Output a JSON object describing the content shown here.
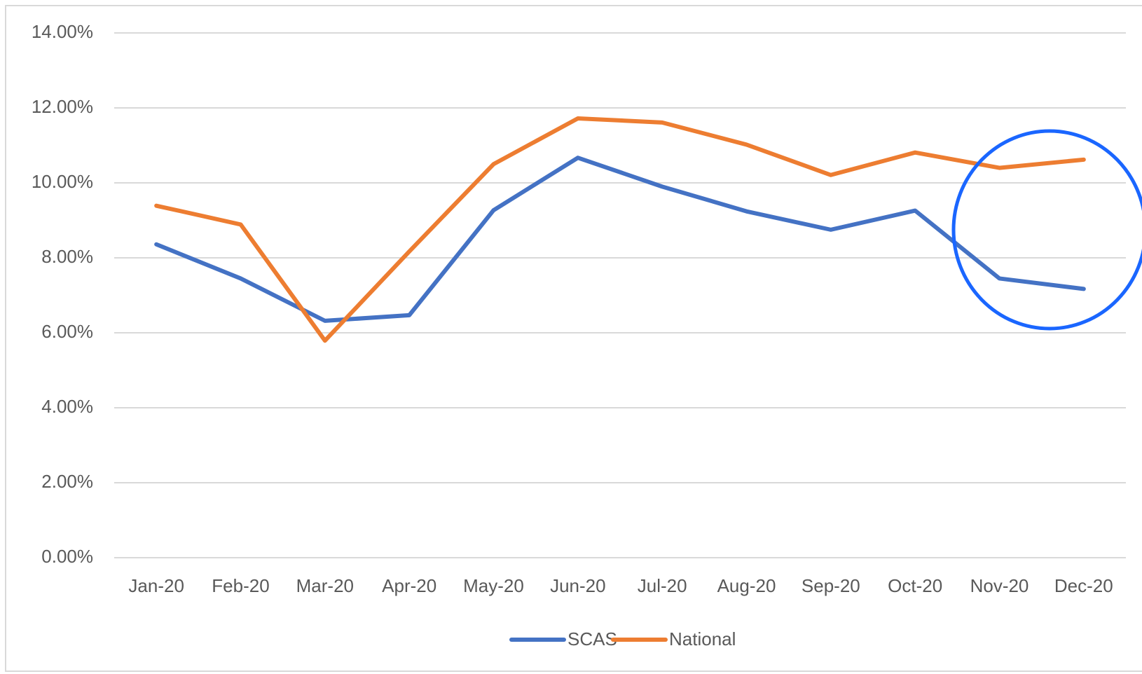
{
  "chart_data": {
    "type": "line",
    "categories": [
      "Jan-20",
      "Feb-20",
      "Mar-20",
      "Apr-20",
      "May-20",
      "Jun-20",
      "Jul-20",
      "Aug-20",
      "Sep-20",
      "Oct-20",
      "Nov-20",
      "Dec-20"
    ],
    "series": [
      {
        "name": "SCAS",
        "color": "#4472c4",
        "values": [
          8.36,
          7.45,
          6.32,
          6.47,
          9.27,
          10.67,
          9.9,
          9.24,
          8.75,
          9.26,
          7.45,
          7.17
        ]
      },
      {
        "name": "National",
        "color": "#ed7d31",
        "values": [
          9.39,
          8.89,
          5.79,
          8.17,
          10.5,
          11.72,
          11.61,
          11.02,
          10.21,
          10.81,
          10.4,
          10.62
        ]
      }
    ],
    "ylim": [
      0,
      14
    ],
    "yticks": [
      {
        "value": 0,
        "label": "0.00%"
      },
      {
        "value": 2,
        "label": "2.00%"
      },
      {
        "value": 4,
        "label": "4.00%"
      },
      {
        "value": 6,
        "label": "6.00%"
      },
      {
        "value": 8,
        "label": "8.00%"
      },
      {
        "value": 10,
        "label": "10.00%"
      },
      {
        "value": 12,
        "label": "12.00%"
      },
      {
        "value": 14,
        "label": "14.00%"
      }
    ],
    "grid": true,
    "legend": "bottom"
  }
}
